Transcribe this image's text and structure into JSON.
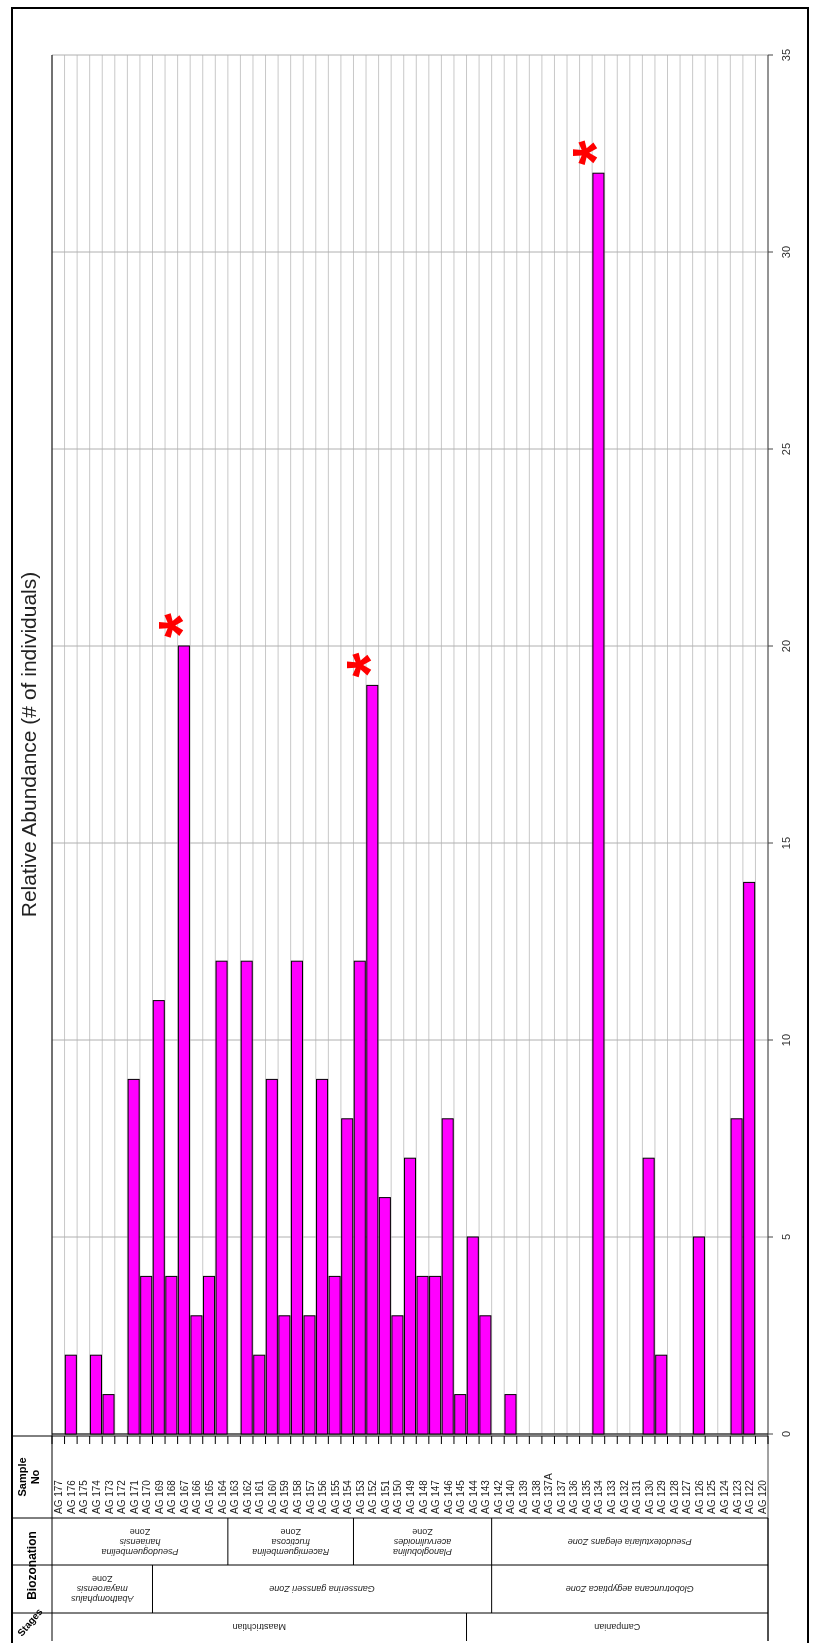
{
  "chart_data": {
    "type": "bar",
    "title": "Relative Abundance (# of individuals)",
    "categories": [
      "AG 177",
      "AG 176",
      "AG 175",
      "AG 174",
      "AG 173",
      "AG 172",
      "AG 171",
      "AG 170",
      "AG 169",
      "AG 168",
      "AG 167",
      "AG 166",
      "AG 165",
      "AG 164",
      "AG 163",
      "AG 162",
      "AG 161",
      "AG 160",
      "AG 159",
      "AG 158",
      "AG 157",
      "AG 156",
      "AG 155",
      "AG 154",
      "AG 153",
      "AG 152",
      "AG 151",
      "AG 150",
      "AG 149",
      "AG 148",
      "AG 147",
      "AG 146",
      "AG 145",
      "AG 144",
      "AG 143",
      "AG 142",
      "AG 140",
      "AG 139",
      "AG 138",
      "AG 137A",
      "AG 137",
      "AG 136",
      "AG 135",
      "AG 134",
      "AG 133",
      "AG 132",
      "AG 131",
      "AG 130",
      "AG 129",
      "AG 128",
      "AG 127",
      "AG 126",
      "AG 125",
      "AG 124",
      "AG 123",
      "AG 122",
      "AG 120"
    ],
    "values": [
      0,
      2,
      0,
      2,
      1,
      0,
      9,
      4,
      11,
      4,
      20,
      3,
      4,
      12,
      0,
      12,
      2,
      9,
      3,
      12,
      3,
      9,
      4,
      8,
      12,
      19,
      6,
      3,
      7,
      4,
      4,
      8,
      1,
      5,
      3,
      0,
      1,
      0,
      0,
      0,
      0,
      0,
      0,
      32,
      0,
      0,
      0,
      7,
      2,
      0,
      0,
      5,
      0,
      0,
      8,
      14,
      0
    ],
    "color": "#ff00ff",
    "ylim": [
      0,
      35
    ],
    "yticks": [
      0,
      5,
      10,
      15,
      20,
      25,
      30,
      35
    ],
    "grid": true,
    "annotations": [
      "Sample No",
      "Biozonation",
      "Stages",
      "Abathomphalus mayaroensis Zone",
      "Gansserina gansseri Zone",
      "Globotruncana aegyptiaca Zone",
      "Pseudoguembelina hariaensis Zone",
      "Racemiguembelina fructicosa Zone",
      "Planoglobulina acervulinoides Zone",
      "Pseudotextularia elegans Zone",
      "Maastrichtian",
      "Campanian",
      {
        "text": "*",
        "y": 20,
        "x": "AG 167"
      },
      {
        "text": "*",
        "y": 19,
        "x": "AG 152"
      },
      {
        "text": "*",
        "y": 32,
        "x": "AG 134"
      }
    ]
  }
}
